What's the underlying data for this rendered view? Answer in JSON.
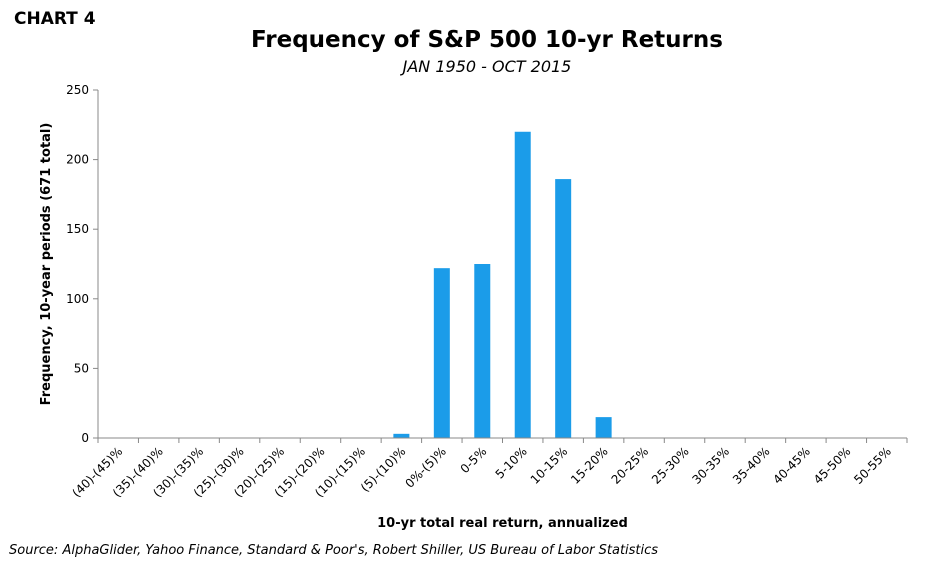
{
  "header": {
    "chart_label": "CHART 4"
  },
  "footer": {
    "source": "Source: AlphaGlider, Yahoo Finance, Standard & Poor's, Robert Shiller, US Bureau of Labor Statistics"
  },
  "colors": {
    "bar": "#1b9ce9",
    "axis": "#888888"
  },
  "chart_data": {
    "type": "bar",
    "title": "Frequency of S&P 500 10-yr Returns",
    "subtitle": "JAN 1950 - OCT 2015",
    "xlabel": "10-yr total real return, annualized",
    "ylabel": "Frequency, 10-year periods (671 total)",
    "ylim": [
      0,
      250
    ],
    "yticks": [
      0,
      50,
      100,
      150,
      200,
      250
    ],
    "grid": false,
    "categories": [
      "(40)-(45)%",
      "(35)-(40)%",
      "(30)-(35)%",
      "(25)-(30)%",
      "(20)-(25)%",
      "(15)-(20)%",
      "(10)-(15)%",
      "(5)-(10)%",
      "0%-(5)%",
      "0-5%",
      "5-10%",
      "10-15%",
      "15-20%",
      "20-25%",
      "25-30%",
      "30-35%",
      "35-40%",
      "40-45%",
      "45-50%",
      "50-55%"
    ],
    "values": [
      0,
      0,
      0,
      0,
      0,
      0,
      0,
      3,
      122,
      125,
      220,
      186,
      15,
      0,
      0,
      0,
      0,
      0,
      0,
      0
    ]
  }
}
